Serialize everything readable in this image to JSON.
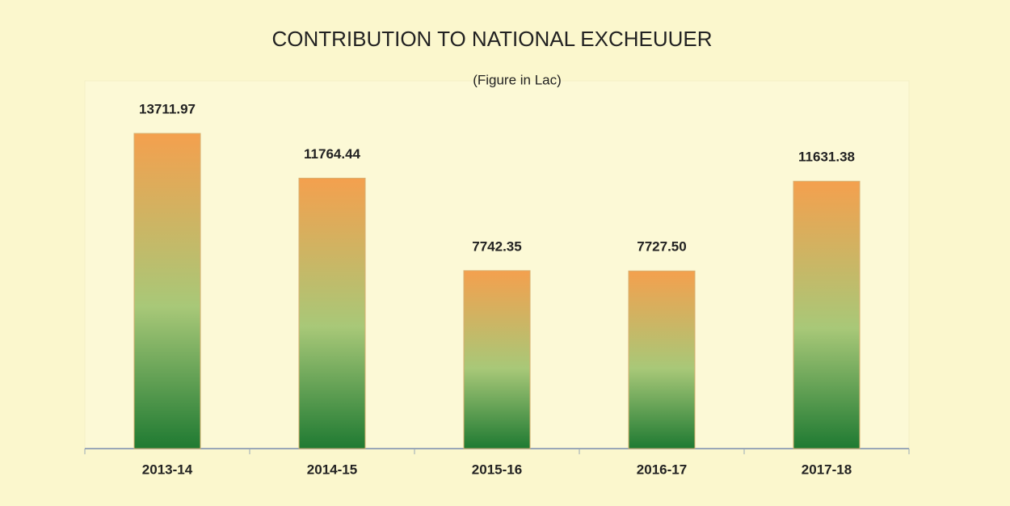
{
  "chart_data": {
    "type": "bar",
    "title": "CONTRIBUTION TO NATIONAL  EXCHEUUER",
    "subtitle": "(Figure in Lac)",
    "categories": [
      "2013-14",
      "2014-15",
      "2015-16",
      "2016-17",
      "2017-18"
    ],
    "values": [
      13711.97,
      11764.44,
      7742.35,
      7727.5,
      11631.38
    ],
    "value_labels": [
      "13711.97",
      "11764.44",
      "7742.35",
      "7727.50",
      "11631.38"
    ],
    "colors": [
      "#f4a04e",
      "#a8c878",
      "#1f7a32"
    ],
    "ylim": [
      0,
      16000
    ]
  }
}
